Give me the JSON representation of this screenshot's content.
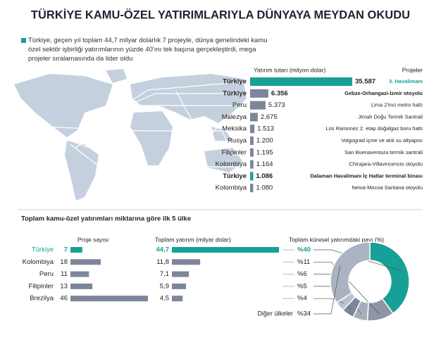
{
  "title": "TÜRKİYE KAMU-ÖZEL YATIRIMLARIYLA DÜNYAYA MEYDAN OKUDU",
  "intro": "Türkiye, geçen yıl toplam 44,7 milyar dolarlık 7 projeyle, dünya genelindeki kamu özel sektör işbirliği yatırımlarının yüzde 40'ını tek başına gerçekleştirdi, mega projeler sıralamasında da lider oldu",
  "section_title": "Toplam kamu-özel yatırımları miktarına göre ilk 5 ülke",
  "chart_data": [
    {
      "type": "hbar",
      "title": "Yatırım tutarı (milyon dolar)",
      "projects_title": "Projeler",
      "categories": [
        "Türkiye",
        "Türkiye",
        "Peru",
        "Malezya",
        "Meksika",
        "Rusya",
        "Filipinler",
        "Kolombiya",
        "Türkiye",
        "Kolombiya"
      ],
      "values": [
        35587,
        6356,
        5373,
        2675,
        1513,
        1200,
        1195,
        1164,
        1086,
        1080
      ],
      "value_labels": [
        "35.587",
        "6.356",
        "5.373",
        "2.675",
        "1.513",
        "1.200",
        "1.195",
        "1.164",
        "1.086",
        "1.080"
      ],
      "colors": [
        "#17a096",
        "#7c8599",
        "#7c8599",
        "#7c8599",
        "#7c8599",
        "#7c8599",
        "#7c8599",
        "#7c8599",
        "#17a096",
        "#7c8599"
      ],
      "projects": [
        "3. Havalimanı",
        "Gebze-Orhangazi-İzmir otoyolu",
        "Lima 2'inci metro hattı",
        "Jimah Doğu Termik Santrali",
        "Los Ramonez 2. etap doğalgaz boru hattı",
        "Volgograd içme ve atık su altyapısı",
        "San Buenaventura termik santrali",
        "Chirajara-Villavincencio otoyolu",
        "Dalaman Havalimanı İç Hatlar terminal binası",
        "Neiva-Mocoa Santana otoyolu"
      ]
    },
    {
      "type": "hbar",
      "title": "Proje sayısı",
      "values": [
        7,
        18,
        11,
        13,
        46
      ],
      "colors": [
        "#17a096",
        "#7c8599",
        "#7c8599",
        "#7c8599",
        "#7c8599"
      ]
    },
    {
      "type": "hbar",
      "title": "Toplam yatırım (milyar dolar)",
      "values": [
        44.7,
        11.8,
        7.1,
        5.9,
        4.5
      ],
      "value_labels": [
        "44,7",
        "11,8",
        "7,1",
        "5,9",
        "4,5"
      ],
      "colors": [
        "#17a096",
        "#7c8599",
        "#7c8599",
        "#7c8599",
        "#7c8599"
      ]
    },
    {
      "type": "pie",
      "title": "Toplam küresel yatırımdaki payı (%)",
      "categories": [
        "Türkiye",
        "Kolombiya",
        "Peru",
        "Filipinler",
        "Brezilya",
        "Diğer ülkeler"
      ],
      "values": [
        40,
        11,
        6,
        5,
        4,
        34
      ],
      "value_labels": [
        "%40",
        "%11",
        "%6",
        "%5",
        "%4",
        "%34"
      ],
      "colors": [
        "#17a096",
        "#8d96a8",
        "#a7aebd",
        "#7c8599",
        "#bcc2cd",
        "#a9b3c2"
      ]
    }
  ]
}
